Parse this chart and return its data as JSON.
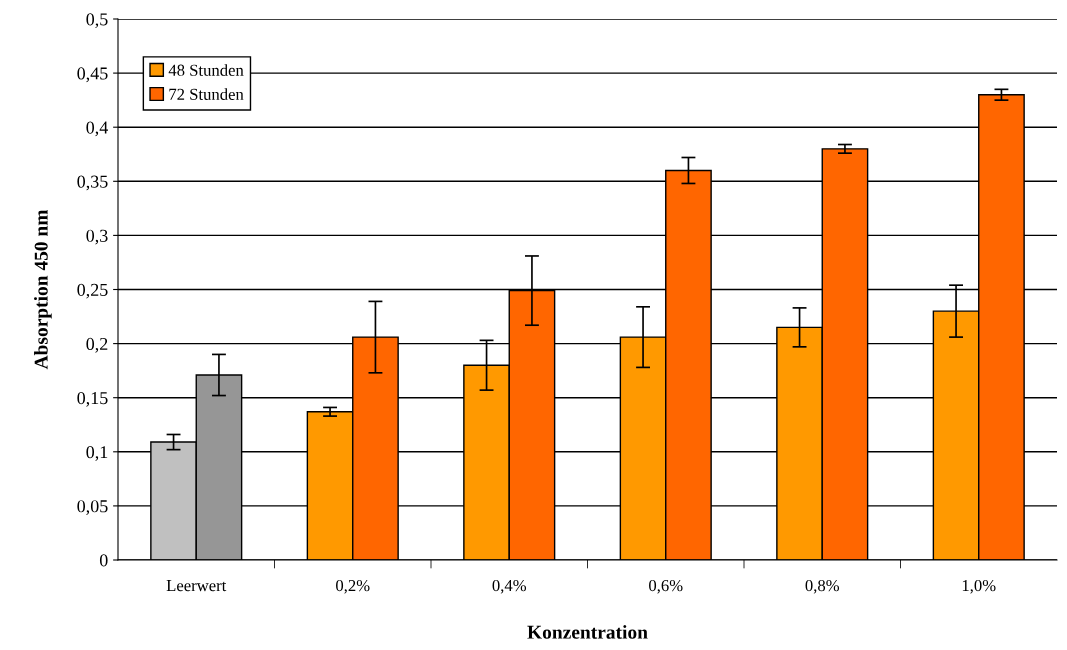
{
  "chart_data": {
    "type": "bar",
    "xlabel": "Konzentration",
    "ylabel": "Absorption 450 nm",
    "categories": [
      "Leerwert",
      "0,2%",
      "0,4%",
      "0,6%",
      "0,8%",
      "1,0%"
    ],
    "series": [
      {
        "name": "48 Stunden",
        "color": "#ff9900",
        "colors": [
          "#c0c0c0",
          "#ff9900",
          "#ff9900",
          "#ff9900",
          "#ff9900",
          "#ff9900"
        ],
        "values": [
          0.109,
          0.137,
          0.18,
          0.206,
          0.215,
          0.23
        ],
        "errors": [
          0.007,
          0.004,
          0.023,
          0.028,
          0.018,
          0.024
        ]
      },
      {
        "name": "72 Stunden",
        "color": "#ff6600",
        "colors": [
          "#969696",
          "#ff6600",
          "#ff6600",
          "#ff6600",
          "#ff6600",
          "#ff6600"
        ],
        "values": [
          0.171,
          0.206,
          0.249,
          0.36,
          0.38,
          0.43
        ],
        "errors": [
          0.019,
          0.033,
          0.032,
          0.012,
          0.004,
          0.005
        ]
      }
    ],
    "ylim": [
      0,
      0.5
    ],
    "yticks": [
      0,
      {
        "value": 0.05,
        "label": "0,05"
      },
      {
        "value": 0.1,
        "label": "0,1"
      },
      {
        "value": 0.15,
        "label": "0,15"
      },
      {
        "value": 0.2,
        "label": "0,2"
      },
      {
        "value": 0.25,
        "label": "0,25"
      },
      {
        "value": 0.3,
        "label": "0,3"
      },
      {
        "value": 0.35,
        "label": "0,35"
      },
      {
        "value": 0.4,
        "label": "0,4"
      },
      {
        "value": 0.45,
        "label": "0,45"
      },
      {
        "value": 0.5,
        "label": "0,5"
      }
    ],
    "grid": "y",
    "legend": "top left"
  }
}
